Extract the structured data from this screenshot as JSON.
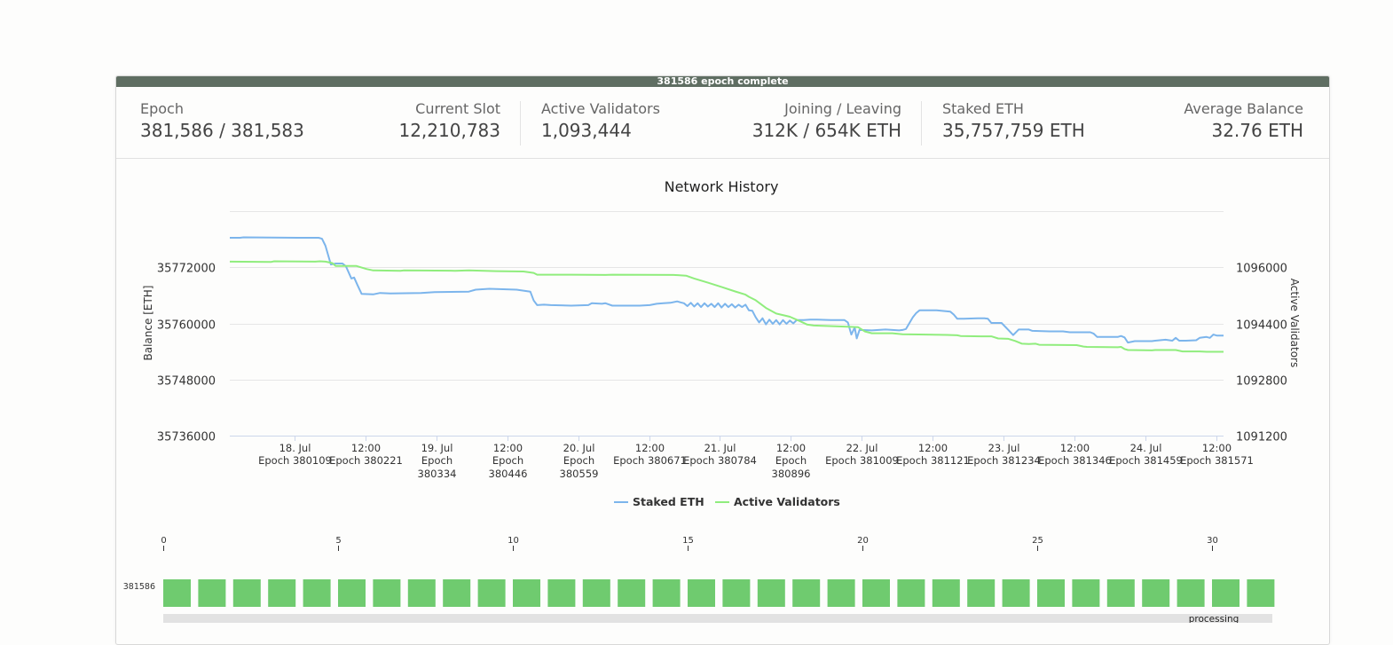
{
  "status_banner": "381586 epoch complete",
  "stats": [
    {
      "label": "Epoch",
      "value": "381,586 / 381,583",
      "align": "left"
    },
    {
      "label": "Current Slot",
      "value": "12,210,783",
      "align": "right"
    },
    {
      "label": "Active Validators",
      "value": "1,093,444",
      "align": "left"
    },
    {
      "label": "Joining / Leaving",
      "value": "312K / 654K ETH",
      "align": "right"
    },
    {
      "label": "Staked ETH",
      "value": "35,757,759 ETH",
      "align": "left"
    },
    {
      "label": "Average Balance",
      "value": "32.76 ETH",
      "align": "right"
    }
  ],
  "chart_data": {
    "type": "line",
    "title": "Network History",
    "ylabel": "Balance [ETH]",
    "y2label": "Active Validators",
    "ylim": [
      35736000,
      35784000
    ],
    "y2lim": [
      1091200,
      1097600
    ],
    "yticks": [
      35736000,
      35748000,
      35760000,
      35772000
    ],
    "y2ticks": [
      1091200,
      1092800,
      1094400,
      1096000
    ],
    "xlim": [
      0,
      14.55
    ],
    "xticks": [
      {
        "x": 1,
        "label": "18. Jul",
        "epoch": "Epoch 380109"
      },
      {
        "x": 2,
        "label": "12:00",
        "epoch": "Epoch 380221"
      },
      {
        "x": 3,
        "label": "19. Jul",
        "epoch": "Epoch 380334"
      },
      {
        "x": 4,
        "label": "12:00",
        "epoch": "Epoch 380446"
      },
      {
        "x": 5,
        "label": "20. Jul",
        "epoch": "Epoch 380559"
      },
      {
        "x": 6,
        "label": "12:00",
        "epoch": "Epoch 380671"
      },
      {
        "x": 7,
        "label": "21. Jul",
        "epoch": "Epoch 380784"
      },
      {
        "x": 8,
        "label": "12:00",
        "epoch": "Epoch 380896"
      },
      {
        "x": 9,
        "label": "22. Jul",
        "epoch": "Epoch 381009"
      },
      {
        "x": 10,
        "label": "12:00",
        "epoch": "Epoch 381121"
      },
      {
        "x": 11,
        "label": "23. Jul",
        "epoch": "Epoch 381234"
      },
      {
        "x": 12,
        "label": "12:00",
        "epoch": "Epoch 381346"
      },
      {
        "x": 13,
        "label": "24. Jul",
        "epoch": "Epoch 381459"
      },
      {
        "x": 14,
        "label": "12:00",
        "epoch": "Epoch 381571"
      }
    ],
    "grid": true,
    "legend": "bottom-center",
    "series": [
      {
        "name": "Staked ETH",
        "color": "#7cb5ec",
        "axis": "left",
        "points": [
          [
            0,
            35778300
          ],
          [
            0.15,
            35778300
          ],
          [
            0.2,
            35778400
          ],
          [
            1,
            35778300
          ],
          [
            1.3,
            35778300
          ],
          [
            1.35,
            35778100
          ],
          [
            1.4,
            35776600
          ],
          [
            1.48,
            35772600
          ],
          [
            1.55,
            35772800
          ],
          [
            1.65,
            35772800
          ],
          [
            1.7,
            35772200
          ],
          [
            1.78,
            35769600
          ],
          [
            1.82,
            35769800
          ],
          [
            1.87,
            35768200
          ],
          [
            1.93,
            35766300
          ],
          [
            2.1,
            35766200
          ],
          [
            2.2,
            35766500
          ],
          [
            2.35,
            35766400
          ],
          [
            2.8,
            35766500
          ],
          [
            3,
            35766700
          ],
          [
            3.5,
            35766800
          ],
          [
            3.6,
            35767200
          ],
          [
            3.8,
            35767400
          ],
          [
            4,
            35767300
          ],
          [
            4.2,
            35767200
          ],
          [
            4.3,
            35767000
          ],
          [
            4.4,
            35766800
          ],
          [
            4.45,
            35764900
          ],
          [
            4.5,
            35763900
          ],
          [
            4.6,
            35764000
          ],
          [
            4.7,
            35763900
          ],
          [
            5,
            35763800
          ],
          [
            5.25,
            35763900
          ],
          [
            5.3,
            35764300
          ],
          [
            5.45,
            35764200
          ],
          [
            5.5,
            35764300
          ],
          [
            5.6,
            35763800
          ],
          [
            6,
            35763800
          ],
          [
            6.15,
            35763900
          ],
          [
            6.25,
            35764200
          ],
          [
            6.35,
            35764300
          ],
          [
            6.45,
            35764400
          ],
          [
            6.55,
            35764700
          ],
          [
            6.6,
            35764500
          ],
          [
            6.65,
            35764300
          ],
          [
            6.7,
            35763700
          ],
          [
            6.75,
            35764400
          ],
          [
            6.8,
            35763600
          ],
          [
            6.85,
            35764300
          ],
          [
            6.9,
            35763500
          ],
          [
            6.95,
            35764300
          ],
          [
            7,
            35763600
          ],
          [
            7.05,
            35764200
          ],
          [
            7.1,
            35763500
          ],
          [
            7.15,
            35764300
          ],
          [
            7.2,
            35763400
          ],
          [
            7.25,
            35764200
          ],
          [
            7.3,
            35763500
          ],
          [
            7.35,
            35764100
          ],
          [
            7.4,
            35763400
          ],
          [
            7.45,
            35764000
          ],
          [
            7.5,
            35763500
          ],
          [
            7.55,
            35764000
          ],
          [
            7.6,
            35762800
          ],
          [
            7.65,
            35762700
          ],
          [
            7.7,
            35761300
          ],
          [
            7.75,
            35760200
          ],
          [
            7.8,
            35761100
          ],
          [
            7.85,
            35759800
          ],
          [
            7.9,
            35760800
          ],
          [
            7.95,
            35759900
          ],
          [
            8,
            35760700
          ],
          [
            8.05,
            35759800
          ],
          [
            8.1,
            35760700
          ],
          [
            8.15,
            35759900
          ],
          [
            8.2,
            35760600
          ],
          [
            8.25,
            35760000
          ],
          [
            8.3,
            35760700
          ],
          [
            8.4,
            35760700
          ],
          [
            8.5,
            35760800
          ],
          [
            8.6,
            35760800
          ],
          [
            8.8,
            35760700
          ],
          [
            9,
            35760700
          ],
          [
            9.05,
            35760200
          ],
          [
            9.1,
            35757600
          ],
          [
            9.15,
            35759100
          ],
          [
            9.18,
            35756800
          ],
          [
            9.22,
            35758600
          ],
          [
            9.4,
            35758500
          ],
          [
            9.6,
            35758700
          ],
          [
            9.8,
            35758500
          ],
          [
            9.85,
            35758600
          ],
          [
            9.9,
            35758800
          ],
          [
            10,
            35761300
          ],
          [
            10.05,
            35762200
          ],
          [
            10.1,
            35762800
          ],
          [
            10.35,
            35762800
          ],
          [
            10.55,
            35762500
          ],
          [
            10.6,
            35761900
          ],
          [
            10.65,
            35761000
          ],
          [
            10.75,
            35761000
          ],
          [
            10.95,
            35761100
          ],
          [
            11.05,
            35761100
          ],
          [
            11.1,
            35761000
          ],
          [
            11.15,
            35760100
          ],
          [
            11.3,
            35760100
          ],
          [
            11.4,
            35758600
          ],
          [
            11.47,
            35757500
          ],
          [
            11.55,
            35758700
          ],
          [
            11.7,
            35758700
          ],
          [
            11.75,
            35758400
          ],
          [
            12,
            35758300
          ],
          [
            12.2,
            35758300
          ],
          [
            12.3,
            35758100
          ],
          [
            12.6,
            35758100
          ],
          [
            12.65,
            35757800
          ],
          [
            12.7,
            35757100
          ],
          [
            12.85,
            35757100
          ],
          [
            13,
            35757100
          ],
          [
            13.05,
            35757300
          ],
          [
            13.1,
            35757000
          ],
          [
            13.15,
            35755900
          ],
          [
            13.25,
            35756200
          ],
          [
            13.5,
            35756200
          ],
          [
            13.55,
            35756300
          ],
          [
            13.7,
            35756500
          ],
          [
            13.8,
            35756300
          ],
          [
            13.85,
            35756900
          ],
          [
            13.9,
            35756300
          ],
          [
            14,
            35756300
          ],
          [
            14.15,
            35756400
          ],
          [
            14.2,
            35756900
          ],
          [
            14.3,
            35757100
          ],
          [
            14.35,
            35756900
          ],
          [
            14.4,
            35757600
          ],
          [
            14.45,
            35757400
          ],
          [
            14.55,
            35757400
          ]
        ]
      },
      {
        "name": "Active Validators",
        "color": "#90ed7d",
        "axis": "right",
        "points": [
          [
            0,
            1096160
          ],
          [
            0.6,
            1096150
          ],
          [
            0.65,
            1096170
          ],
          [
            1.25,
            1096160
          ],
          [
            1.32,
            1096170
          ],
          [
            1.4,
            1096160
          ],
          [
            1.5,
            1096120
          ],
          [
            1.55,
            1096040
          ],
          [
            1.85,
            1096040
          ],
          [
            2,
            1095950
          ],
          [
            2.1,
            1095910
          ],
          [
            2.5,
            1095900
          ],
          [
            2.55,
            1095910
          ],
          [
            3.3,
            1095900
          ],
          [
            3.5,
            1095910
          ],
          [
            3.9,
            1095890
          ],
          [
            4.3,
            1095880
          ],
          [
            4.45,
            1095840
          ],
          [
            4.5,
            1095790
          ],
          [
            5,
            1095790
          ],
          [
            5.5,
            1095780
          ],
          [
            5.6,
            1095790
          ],
          [
            6.5,
            1095780
          ],
          [
            6.68,
            1095760
          ],
          [
            6.8,
            1095680
          ],
          [
            7,
            1095560
          ],
          [
            7.2,
            1095440
          ],
          [
            7.4,
            1095310
          ],
          [
            7.55,
            1095220
          ],
          [
            7.6,
            1095160
          ],
          [
            7.7,
            1095060
          ],
          [
            7.85,
            1094840
          ],
          [
            8,
            1094680
          ],
          [
            8.2,
            1094590
          ],
          [
            8.35,
            1094460
          ],
          [
            8.45,
            1094370
          ],
          [
            8.55,
            1094340
          ],
          [
            9,
            1094310
          ],
          [
            9.2,
            1094290
          ],
          [
            9.3,
            1094170
          ],
          [
            9.4,
            1094120
          ],
          [
            9.7,
            1094120
          ],
          [
            9.85,
            1094090
          ],
          [
            10.2,
            1094080
          ],
          [
            10.5,
            1094070
          ],
          [
            10.65,
            1094060
          ],
          [
            10.7,
            1094040
          ],
          [
            11,
            1094030
          ],
          [
            11.15,
            1094030
          ],
          [
            11.25,
            1093970
          ],
          [
            11.4,
            1093960
          ],
          [
            11.5,
            1093900
          ],
          [
            11.6,
            1093820
          ],
          [
            11.7,
            1093810
          ],
          [
            11.8,
            1093820
          ],
          [
            11.85,
            1093790
          ],
          [
            12.4,
            1093780
          ],
          [
            12.5,
            1093740
          ],
          [
            12.55,
            1093730
          ],
          [
            13,
            1093720
          ],
          [
            13.05,
            1093730
          ],
          [
            13.1,
            1093670
          ],
          [
            13.15,
            1093640
          ],
          [
            13.5,
            1093630
          ],
          [
            13.55,
            1093640
          ],
          [
            13.85,
            1093640
          ],
          [
            13.95,
            1093600
          ],
          [
            14.2,
            1093600
          ],
          [
            14.3,
            1093590
          ],
          [
            14.55,
            1093590
          ]
        ]
      }
    ]
  },
  "slot_grid": {
    "row_label": "381586",
    "axis_ticks": [
      "0",
      "5",
      "10",
      "15",
      "20",
      "25",
      "30"
    ],
    "slot_count": 32,
    "slot_color": "#6fcb6f",
    "processing_label": "processing"
  }
}
